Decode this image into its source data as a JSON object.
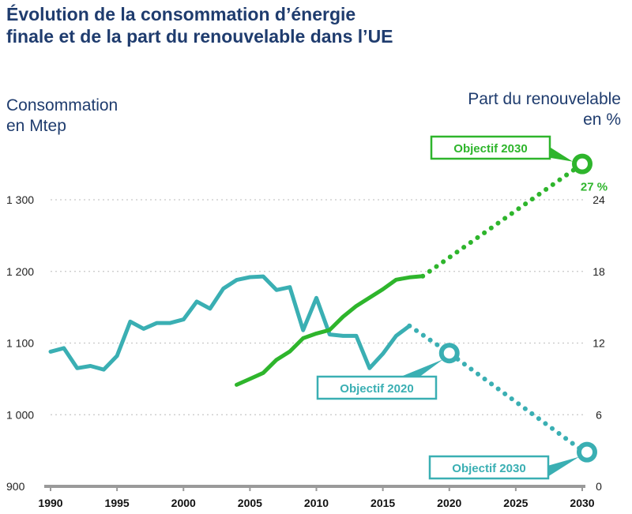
{
  "title_line1": "Évolution de la consommation d’énergie",
  "title_line2": "finale et de la part du renouvelable dans l’UE",
  "colors": {
    "consumption": "#3aafb3",
    "renewable": "#2eb52c",
    "title": "#1f3c6e",
    "axis": "#9a9a9a",
    "grid": "#c8c8c8"
  },
  "chart_data": {
    "type": "line",
    "title": "Évolution de la consommation d’énergie finale et de la part du renouvelable dans l’UE",
    "x_ticks": [
      "1990",
      "1995",
      "2000",
      "2005",
      "2010",
      "2015",
      "2020",
      "2025",
      "2030"
    ],
    "xlim": [
      1990,
      2030
    ],
    "left_axis": {
      "label_line1": "Consommation",
      "label_line2": "en Mtep",
      "ticks": [
        "900",
        "1 000",
        "1 100",
        "1 200",
        "1 300"
      ],
      "ylim": [
        900,
        1300
      ]
    },
    "right_axis": {
      "label_line1": "Part du renouvelable",
      "label_line2": "en %",
      "ticks": [
        "0",
        "6",
        "12",
        "18",
        "24"
      ],
      "ylim": [
        0,
        24
      ]
    },
    "grid": "horizontal dotted",
    "series": [
      {
        "axis": "left",
        "x": [
          1990,
          1991,
          1992,
          1993,
          1994,
          1995,
          1996,
          1997,
          1998,
          1999,
          2000,
          2001,
          2002,
          2003,
          2004,
          2005,
          2006,
          2007,
          2008,
          2009,
          2010,
          2011,
          2012,
          2013,
          2014,
          2015,
          2016,
          2017
        ],
        "y": [
          1088,
          1093,
          1065,
          1068,
          1063,
          1082,
          1130,
          1120,
          1128,
          1128,
          1133,
          1158,
          1148,
          1176,
          1188,
          1192,
          1193,
          1174,
          1178,
          1118,
          1163,
          1112,
          1110,
          1110,
          1065,
          1085,
          1110,
          1124
        ]
      },
      {
        "axis": "left",
        "style": "dotted",
        "x": [
          2017,
          2020,
          2030
        ],
        "y": [
          1124,
          1086,
          950
        ]
      },
      {
        "axis": "right",
        "x": [
          2004,
          2005,
          2006,
          2007,
          2008,
          2009,
          2010,
          2011,
          2012,
          2013,
          2014,
          2015,
          2016,
          2017,
          2018
        ],
        "y": [
          8.5,
          9.0,
          9.5,
          10.6,
          11.3,
          12.4,
          12.8,
          13.1,
          14.2,
          15.1,
          15.8,
          16.5,
          17.3,
          17.5,
          17.6
        ]
      },
      {
        "axis": "right",
        "style": "dotted",
        "x": [
          2018,
          2030
        ],
        "y": [
          17.6,
          27
        ]
      }
    ],
    "annotations": [
      {
        "text": "Objectif 2030",
        "series": "renewable",
        "x": 2030,
        "y": 27,
        "value_label": "27 %"
      },
      {
        "text": "Objectif 2020",
        "series": "consumption",
        "x": 2020,
        "y": 1086
      },
      {
        "text": "Objectif 2030",
        "series": "consumption",
        "x": 2030,
        "y": 950
      }
    ]
  }
}
